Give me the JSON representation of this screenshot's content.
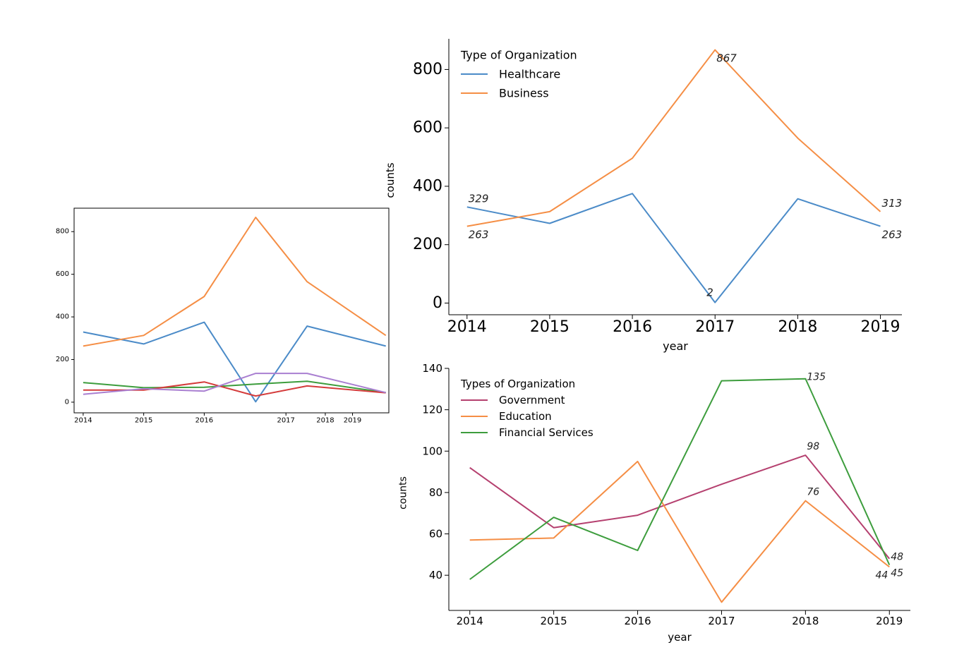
{
  "colors": {
    "blue": "#4b8bc8",
    "orange": "#f58e45",
    "green": "#3d9d3d",
    "red": "#d43b3b",
    "purple": "#a97fd1",
    "magenta": "#b5406f",
    "axis": "#000000"
  },
  "chart_data": [
    {
      "id": "overview",
      "type": "line",
      "x": [
        2014,
        2015,
        2016,
        2017,
        2018,
        2019
      ],
      "x_display": [
        2014,
        2015,
        2016,
        2016.85,
        2017.7,
        2019
      ],
      "xticks": [
        "2014",
        "2015",
        "2016",
        "2017",
        "2018",
        "2019"
      ],
      "xtick_positions": [
        2014,
        2015,
        2016,
        2017.35,
        2018,
        2018.45
      ],
      "yticks": [
        0,
        200,
        400,
        600,
        800
      ],
      "ylim": [
        -50,
        910
      ],
      "xlim": [
        2013.85,
        2019.05
      ],
      "title": "",
      "xlabel": "",
      "ylabel": "",
      "series": [
        {
          "color": "blue",
          "values": [
            329,
            273,
            375,
            2,
            357,
            263
          ]
        },
        {
          "color": "orange",
          "values": [
            263,
            313,
            496,
            867,
            565,
            313
          ]
        },
        {
          "color": "green",
          "values": [
            92,
            68,
            70,
            85,
            98,
            45
          ]
        },
        {
          "color": "red",
          "values": [
            57,
            57,
            95,
            29,
            76,
            44
          ]
        },
        {
          "color": "purple",
          "values": [
            37,
            63,
            52,
            135,
            135,
            45
          ]
        }
      ]
    },
    {
      "id": "healthcare-business",
      "type": "line",
      "x": [
        2014,
        2015,
        2016,
        2017,
        2018,
        2019
      ],
      "xticks": [
        "2014",
        "2015",
        "2016",
        "2017",
        "2018",
        "2019"
      ],
      "yticks": [
        0,
        200,
        400,
        600,
        800
      ],
      "ylim": [
        -40,
        905
      ],
      "xlim": [
        2013.78,
        2019.26
      ],
      "title": "",
      "xlabel": "year",
      "ylabel": "counts",
      "legend_title": "Type of Organization",
      "legend_position": "top-left",
      "series": [
        {
          "name": "Healthcare",
          "color": "blue",
          "values": [
            329,
            273,
            375,
            2,
            357,
            263
          ]
        },
        {
          "name": "Business",
          "color": "orange",
          "values": [
            263,
            313,
            496,
            867,
            565,
            313
          ]
        }
      ],
      "annotations": [
        {
          "text": "329",
          "x": 2014,
          "y": 329,
          "pos": "above-right"
        },
        {
          "text": "263",
          "x": 2014,
          "y": 263,
          "pos": "below-right"
        },
        {
          "text": "867",
          "x": 2017,
          "y": 867,
          "pos": "below-right"
        },
        {
          "text": "2",
          "x": 2017,
          "y": 2,
          "pos": "above-left"
        },
        {
          "text": "313",
          "x": 2019,
          "y": 313,
          "pos": "above-right"
        },
        {
          "text": "263",
          "x": 2019,
          "y": 263,
          "pos": "below-right"
        }
      ]
    },
    {
      "id": "government-education-financial",
      "type": "line",
      "x": [
        2014,
        2015,
        2016,
        2017,
        2018,
        2019
      ],
      "xticks": [
        "2014",
        "2015",
        "2016",
        "2017",
        "2018",
        "2019"
      ],
      "yticks": [
        40,
        60,
        80,
        100,
        120,
        140
      ],
      "ylim": [
        23,
        140
      ],
      "xlim": [
        2013.75,
        2019.25
      ],
      "title": "",
      "xlabel": "year",
      "ylabel": "counts",
      "legend_title": "Types of Organization",
      "legend_position": "top-left",
      "series": [
        {
          "name": "Government",
          "color": "magenta",
          "values": [
            92,
            63,
            69,
            84,
            98,
            48
          ]
        },
        {
          "name": "Education",
          "color": "orange",
          "values": [
            57,
            58,
            95,
            27,
            76,
            44
          ]
        },
        {
          "name": "Financial Services",
          "color": "green",
          "values": [
            38,
            68,
            52,
            134,
            135,
            45
          ]
        }
      ],
      "annotations": [
        {
          "text": "135",
          "x": 2018,
          "y": 135,
          "pos": "right"
        },
        {
          "text": "98",
          "x": 2018,
          "y": 98,
          "pos": "above-right"
        },
        {
          "text": "76",
          "x": 2018,
          "y": 76,
          "pos": "above-right"
        },
        {
          "text": "48",
          "x": 2019,
          "y": 48,
          "pos": "right"
        },
        {
          "text": "44",
          "x": 2019,
          "y": 44,
          "pos": "below-left"
        },
        {
          "text": "45",
          "x": 2019,
          "y": 45,
          "pos": "below-right"
        }
      ]
    }
  ]
}
